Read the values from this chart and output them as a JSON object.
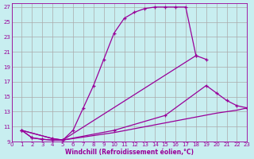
{
  "xlabel": "Windchill (Refroidissement éolien,°C)",
  "bg_color": "#c8eef0",
  "line_color": "#990099",
  "grid_color": "#aaaaaa",
  "xmin": 0,
  "xmax": 23,
  "ymin": 9,
  "ymax": 27.5,
  "yticks": [
    9,
    11,
    13,
    15,
    17,
    19,
    21,
    23,
    25,
    27
  ],
  "xticks": [
    0,
    1,
    2,
    3,
    4,
    5,
    6,
    7,
    8,
    9,
    10,
    11,
    12,
    13,
    14,
    15,
    16,
    17,
    18,
    19,
    20,
    21,
    22,
    23
  ],
  "curve1_x": [
    1,
    2,
    3,
    4,
    5,
    6,
    7,
    8,
    9,
    10,
    11,
    12,
    13,
    14,
    15,
    16,
    17,
    18
  ],
  "curve1_y": [
    10.5,
    9.5,
    9.3,
    9.2,
    9.2,
    10.5,
    13.5,
    16.5,
    20.0,
    23.5,
    25.5,
    26.3,
    26.8,
    27.0,
    27.0,
    27.0,
    27.0,
    20.5
  ],
  "curve2_x": [
    1,
    2,
    3,
    4,
    5,
    18,
    19
  ],
  "curve2_y": [
    10.5,
    9.5,
    9.3,
    9.2,
    9.2,
    20.5,
    20.0
  ],
  "curve3_x": [
    1,
    4,
    5,
    10,
    15,
    19,
    20,
    21,
    22,
    23
  ],
  "curve3_y": [
    10.5,
    9.4,
    9.2,
    10.5,
    12.5,
    16.5,
    15.5,
    14.5,
    13.8,
    13.5
  ],
  "curve4_x": [
    1,
    4,
    5,
    10,
    15,
    20,
    22,
    23
  ],
  "curve4_y": [
    10.5,
    9.4,
    9.2,
    10.2,
    11.5,
    12.8,
    13.2,
    13.5
  ]
}
